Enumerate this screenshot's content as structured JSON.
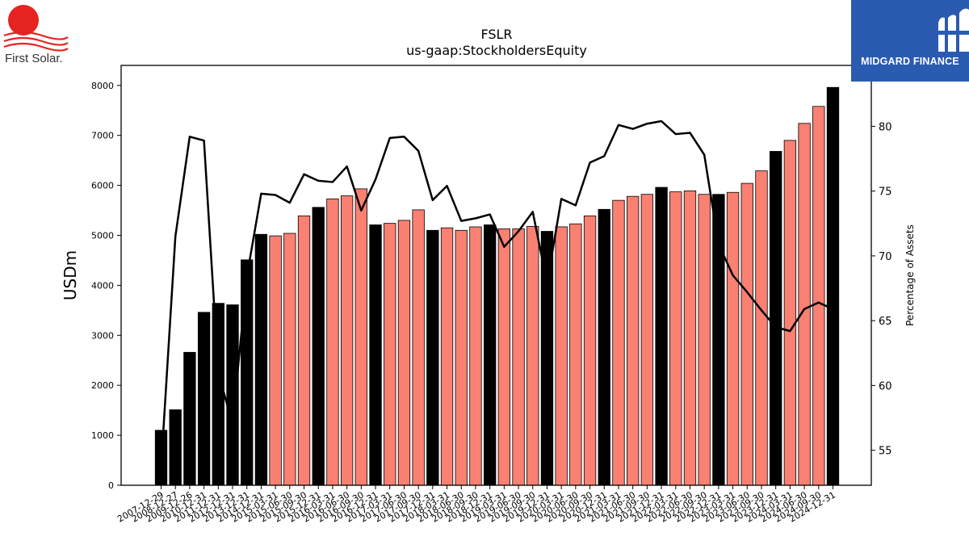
{
  "logos": {
    "company": "First Solar.",
    "publisher": "MIDGARD FINANCE"
  },
  "chart_data": {
    "type": "bar",
    "title": "FSLR",
    "subtitle": "us-gaap:StockholdersEquity",
    "ylabel": "USDm",
    "y2label": "Percentage of Assets",
    "ylim": [
      0,
      8400
    ],
    "y2lim": [
      52.3,
      84.7
    ],
    "yticks": [
      0,
      1000,
      2000,
      3000,
      4000,
      5000,
      6000,
      7000,
      8000
    ],
    "y2ticks": [
      55,
      60,
      65,
      70,
      75,
      80
    ],
    "grid": false,
    "colors": {
      "annual": "#000000",
      "quarterly": "#fa8072",
      "line": "#000000"
    },
    "categories": [
      "2007-12-29",
      "2008-12-27",
      "2009-12-26",
      "2010-12-31",
      "2011-12-31",
      "2012-12-31",
      "2013-12-31",
      "2014-12-31",
      "2015-03-31",
      "2015-06-30",
      "2015-09-30",
      "2015-12-31",
      "2016-03-31",
      "2016-06-30",
      "2016-09-30",
      "2016-12-31",
      "2017-03-31",
      "2017-06-30",
      "2017-09-30",
      "2017-12-31",
      "2018-03-31",
      "2018-06-30",
      "2018-09-30",
      "2018-12-31",
      "2019-03-31",
      "2019-06-30",
      "2019-09-30",
      "2019-12-31",
      "2020-03-31",
      "2020-06-30",
      "2020-09-30",
      "2020-12-31",
      "2021-03-31",
      "2021-06-30",
      "2021-09-30",
      "2021-12-31",
      "2022-03-31",
      "2022-06-30",
      "2022-09-30",
      "2022-12-31",
      "2023-03-31",
      "2023-06-30",
      "2023-09-30",
      "2023-12-31",
      "2024-03-31",
      "2024-06-30",
      "2024-09-30",
      "2024-12-31"
    ],
    "period_type": [
      "annual",
      "annual",
      "annual",
      "annual",
      "annual",
      "annual",
      "annual",
      "annual",
      "quarterly",
      "quarterly",
      "quarterly",
      "annual",
      "quarterly",
      "quarterly",
      "quarterly",
      "annual",
      "quarterly",
      "quarterly",
      "quarterly",
      "annual",
      "quarterly",
      "quarterly",
      "quarterly",
      "annual",
      "quarterly",
      "quarterly",
      "quarterly",
      "annual",
      "quarterly",
      "quarterly",
      "quarterly",
      "annual",
      "quarterly",
      "quarterly",
      "quarterly",
      "annual",
      "quarterly",
      "quarterly",
      "quarterly",
      "annual",
      "quarterly",
      "quarterly",
      "quarterly",
      "annual",
      "quarterly",
      "quarterly",
      "quarterly",
      "annual"
    ],
    "series": [
      {
        "name": "StockholdersEquity",
        "type": "bar",
        "axis": "left",
        "values": [
          1100,
          1510,
          2660,
          3460,
          3640,
          3610,
          4510,
          5020,
          4990,
          5040,
          5390,
          5560,
          5730,
          5790,
          5930,
          5210,
          5240,
          5300,
          5510,
          5100,
          5150,
          5100,
          5170,
          5210,
          5130,
          5130,
          5180,
          5080,
          5170,
          5230,
          5390,
          5520,
          5700,
          5780,
          5820,
          5960,
          5870,
          5890,
          5820,
          5820,
          5860,
          6040,
          6290,
          6680,
          6900,
          7240,
          7580,
          7960
        ]
      },
      {
        "name": "Percentage of Assets",
        "type": "line",
        "axis": "right",
        "values": [
          53.7,
          71.5,
          79.2,
          78.9,
          61.0,
          57.0,
          68.4,
          74.8,
          74.7,
          74.1,
          76.3,
          75.8,
          75.7,
          76.9,
          73.5,
          75.9,
          79.1,
          79.2,
          78.1,
          74.3,
          75.4,
          72.7,
          72.9,
          73.2,
          70.7,
          71.9,
          73.4,
          67.9,
          74.4,
          73.9,
          77.2,
          77.7,
          80.1,
          79.8,
          80.2,
          80.4,
          79.4,
          79.5,
          77.8,
          70.9,
          68.5,
          67.2,
          65.8,
          64.5,
          64.2,
          65.9,
          66.4,
          65.9
        ]
      }
    ]
  }
}
